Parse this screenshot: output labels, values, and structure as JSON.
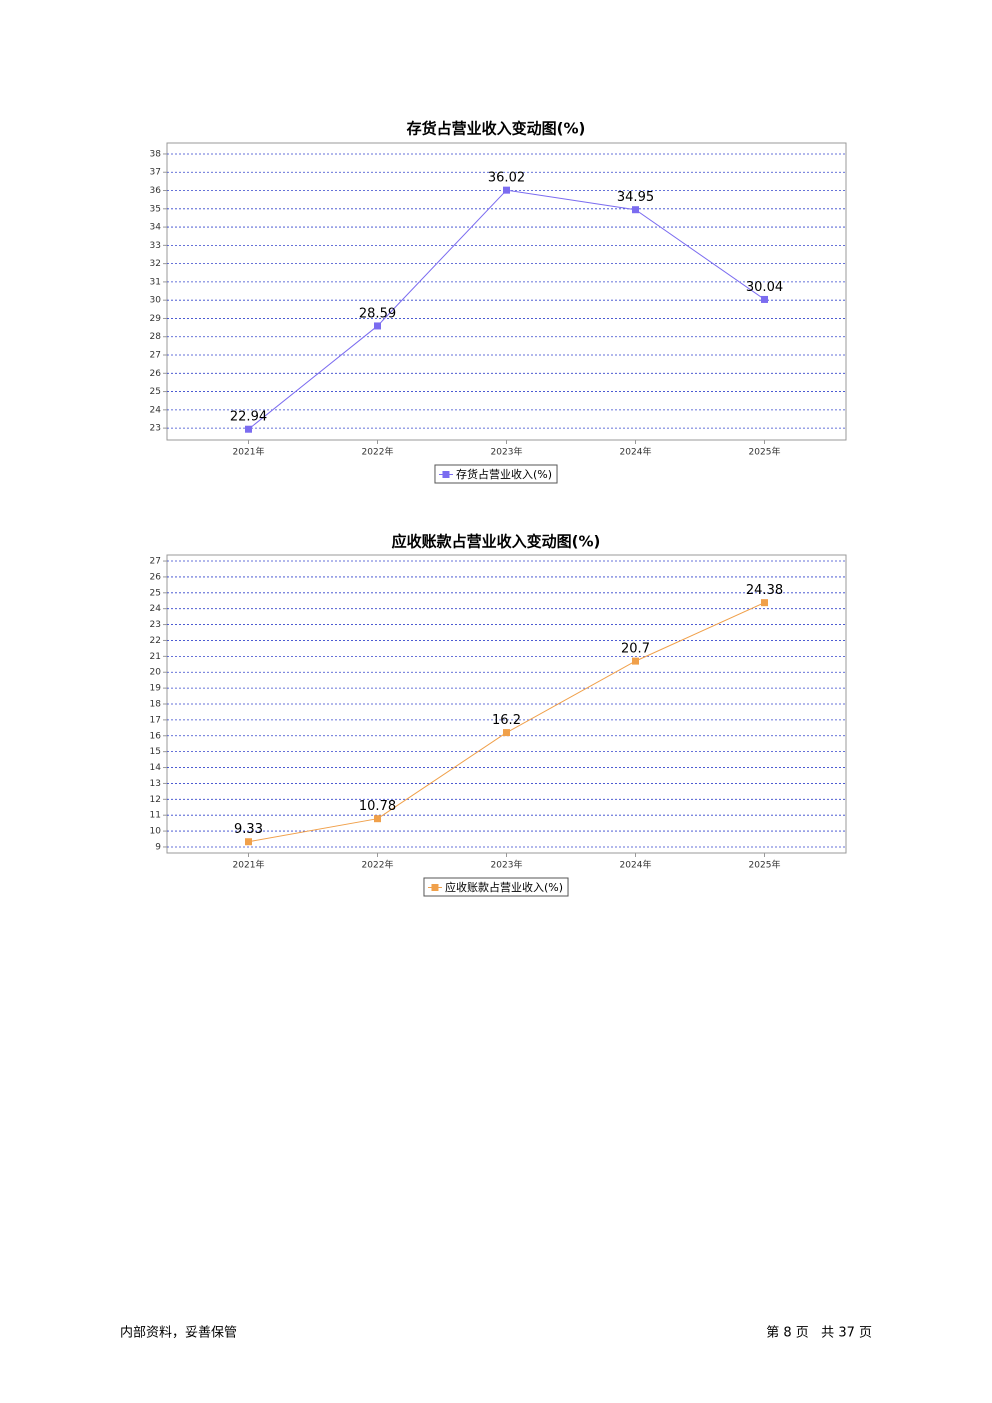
{
  "chart_data": [
    {
      "type": "line",
      "title": "存货占营业收入变动图(%)",
      "categories": [
        "2021年",
        "2022年",
        "2023年",
        "2024年",
        "2025年"
      ],
      "series": [
        {
          "name": "存货占营业收入(%)",
          "color": "#7b6cf0",
          "values": [
            22.94,
            28.59,
            36.02,
            34.95,
            30.04
          ]
        }
      ],
      "ylim": [
        22.35,
        38.6
      ],
      "yticks": [
        23,
        24,
        25,
        26,
        27,
        28,
        29,
        30,
        31,
        32,
        33,
        34,
        35,
        36,
        37,
        38
      ],
      "grid": true,
      "legend": "bottom"
    },
    {
      "type": "line",
      "title": "应收账款占营业收入变动图(%)",
      "categories": [
        "2021年",
        "2022年",
        "2023年",
        "2024年",
        "2025年"
      ],
      "series": [
        {
          "name": "应收账款占营业收入(%)",
          "color": "#f0a04a",
          "values": [
            9.33,
            10.78,
            16.2,
            20.7,
            24.38
          ]
        }
      ],
      "ylim": [
        8.62,
        27.38
      ],
      "yticks": [
        9,
        10,
        11,
        12,
        13,
        14,
        15,
        16,
        17,
        18,
        19,
        20,
        21,
        22,
        23,
        24,
        25,
        26,
        27
      ],
      "grid": true,
      "legend": "bottom"
    }
  ],
  "footer": {
    "left": "内部资料，妥善保管",
    "right": "第 8 页   共 37 页"
  }
}
